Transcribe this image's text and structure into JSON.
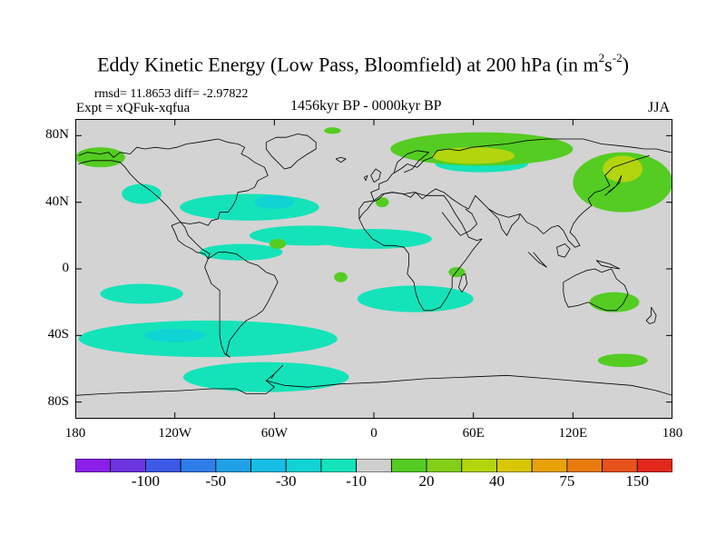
{
  "title": {
    "prefix": "Eddy Kinetic Energy (Low Pass, Bloomfield) at 200 hPa (in m",
    "sup1": "2",
    "mid": "s",
    "sup2": "-2",
    "suffix": ")"
  },
  "stats": "rmsd= 11.8653 diff= -2.97822",
  "experiment": "Expt = xQFuk-xqfua",
  "period": "1456kyr BP - 0000kyr BP",
  "season": "JJA",
  "map": {
    "projection": "cylindrical-equidistant",
    "lon_range": [
      -180,
      180
    ],
    "lat_range": [
      -90,
      90
    ],
    "background_color": "#d3d3d3",
    "coastline_color": "#000000",
    "x_ticks": [
      {
        "lon": -180,
        "label": "180"
      },
      {
        "lon": -120,
        "label": "120W"
      },
      {
        "lon": -60,
        "label": "60W"
      },
      {
        "lon": 0,
        "label": "0"
      },
      {
        "lon": 60,
        "label": "60E"
      },
      {
        "lon": 120,
        "label": "120E"
      },
      {
        "lon": 180,
        "label": "180"
      }
    ],
    "y_ticks": [
      {
        "lat": 80,
        "label": "80N"
      },
      {
        "lat": 40,
        "label": "40N"
      },
      {
        "lat": 0,
        "label": "0"
      },
      {
        "lat": -40,
        "label": "40S"
      },
      {
        "lat": -80,
        "label": "80S"
      }
    ]
  },
  "colorbar": {
    "colors": [
      "#8c1eea",
      "#6a34e0",
      "#3c5ae6",
      "#2f7de8",
      "#1fa0e6",
      "#16bde4",
      "#10d3d4",
      "#14e3b9",
      "#cfcfcf",
      "#54cc22",
      "#83cf18",
      "#b2d50d",
      "#d8c605",
      "#e9a10a",
      "#e97b0d",
      "#e8501c",
      "#e2281c"
    ],
    "labels": [
      {
        "index": 2,
        "text": "-100"
      },
      {
        "index": 4,
        "text": "-50"
      },
      {
        "index": 6,
        "text": "-30"
      },
      {
        "index": 8,
        "text": "-10"
      },
      {
        "index": 10,
        "text": "20"
      },
      {
        "index": 12,
        "text": "40"
      },
      {
        "index": 14,
        "text": "75"
      },
      {
        "index": 16,
        "text": "150"
      }
    ]
  },
  "anomalies": [
    {
      "level": "-20",
      "color": "#14e3b9",
      "lon": -140,
      "lat": 45,
      "rx": 12,
      "ry": 6
    },
    {
      "level": "-20",
      "color": "#14e3b9",
      "lon": -75,
      "lat": 37,
      "rx": 42,
      "ry": 8
    },
    {
      "level": "-20",
      "color": "#14e3b9",
      "lon": -40,
      "lat": 20,
      "rx": 35,
      "ry": 6
    },
    {
      "level": "-20",
      "color": "#14e3b9",
      "lon": 0,
      "lat": 18,
      "rx": 35,
      "ry": 6
    },
    {
      "level": "-20",
      "color": "#14e3b9",
      "lon": -80,
      "lat": 10,
      "rx": 25,
      "ry": 5
    },
    {
      "level": "-20",
      "color": "#14e3b9",
      "lon": -140,
      "lat": -15,
      "rx": 25,
      "ry": 6
    },
    {
      "level": "-20",
      "color": "#14e3b9",
      "lon": -100,
      "lat": -42,
      "rx": 78,
      "ry": 11
    },
    {
      "level": "-20",
      "color": "#14e3b9",
      "lon": -65,
      "lat": -65,
      "rx": 50,
      "ry": 9
    },
    {
      "level": "-20",
      "color": "#14e3b9",
      "lon": 25,
      "lat": -18,
      "rx": 35,
      "ry": 8
    },
    {
      "level": "-20",
      "color": "#14e3b9",
      "lon": 65,
      "lat": 63,
      "rx": 28,
      "ry": 5
    },
    {
      "level": "-30",
      "color": "#10d3d4",
      "lon": -120,
      "lat": -40,
      "rx": 18,
      "ry": 4
    },
    {
      "level": "-30",
      "color": "#10d3d4",
      "lon": -60,
      "lat": 40,
      "rx": 12,
      "ry": 4
    },
    {
      "level": "20",
      "color": "#54cc22",
      "lon": 65,
      "lat": 72,
      "rx": 55,
      "ry": 10
    },
    {
      "level": "20",
      "color": "#54cc22",
      "lon": 150,
      "lat": 52,
      "rx": 30,
      "ry": 18
    },
    {
      "level": "20",
      "color": "#54cc22",
      "lon": -165,
      "lat": 67,
      "rx": 15,
      "ry": 6
    },
    {
      "level": "20",
      "color": "#54cc22",
      "lon": 145,
      "lat": -20,
      "rx": 15,
      "ry": 6
    },
    {
      "level": "20",
      "color": "#54cc22",
      "lon": 150,
      "lat": -55,
      "rx": 15,
      "ry": 4
    },
    {
      "level": "20",
      "color": "#54cc22",
      "lon": 50,
      "lat": -2,
      "rx": 5,
      "ry": 3
    },
    {
      "level": "20",
      "color": "#54cc22",
      "lon": 5,
      "lat": 40,
      "rx": 4,
      "ry": 3
    },
    {
      "level": "20",
      "color": "#54cc22",
      "lon": -20,
      "lat": -5,
      "rx": 4,
      "ry": 3
    },
    {
      "level": "20",
      "color": "#54cc22",
      "lon": -58,
      "lat": 15,
      "rx": 5,
      "ry": 3
    },
    {
      "level": "20",
      "color": "#54cc22",
      "lon": -25,
      "lat": 83,
      "rx": 5,
      "ry": 2
    },
    {
      "level": "40",
      "color": "#b2d50d",
      "lon": 60,
      "lat": 68,
      "rx": 25,
      "ry": 5
    },
    {
      "level": "40",
      "color": "#b2d50d",
      "lon": 150,
      "lat": 60,
      "rx": 12,
      "ry": 8
    }
  ]
}
